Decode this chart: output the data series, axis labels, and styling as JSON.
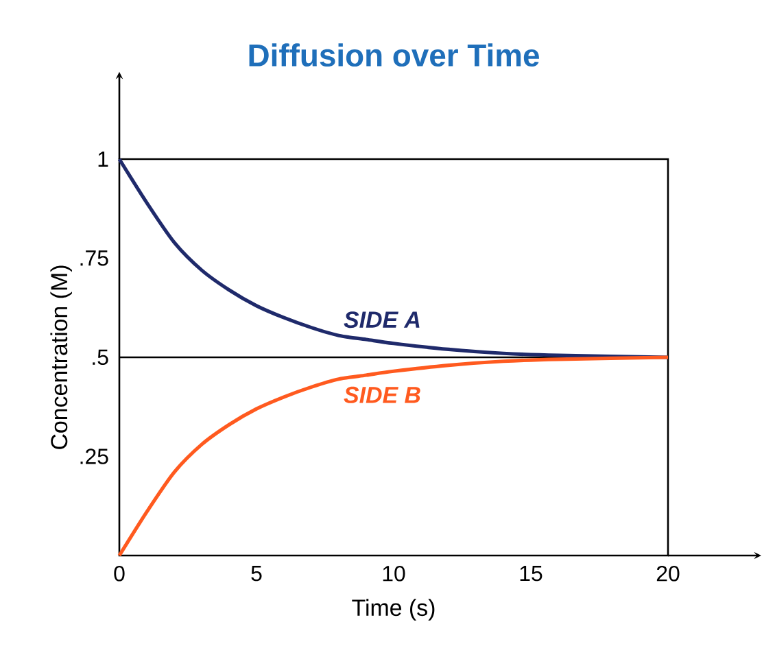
{
  "chart_data": {
    "type": "line",
    "title": "Diffusion over Time",
    "xlabel": "Time (s)",
    "ylabel": "Concentration (M)",
    "x": [
      0,
      1,
      2,
      3,
      4,
      5,
      6,
      7,
      8,
      9,
      10,
      12,
      14,
      16,
      20
    ],
    "series": [
      {
        "name": "SIDE A",
        "color": "#1f2a6b",
        "values": [
          1,
          0.89,
          0.79,
          0.72,
          0.67,
          0.63,
          0.6,
          0.575,
          0.555,
          0.545,
          0.535,
          0.52,
          0.51,
          0.505,
          0.5
        ]
      },
      {
        "name": "SIDE B",
        "color": "#ff5a1f",
        "values": [
          0,
          0.11,
          0.21,
          0.28,
          0.33,
          0.37,
          0.4,
          0.425,
          0.445,
          0.455,
          0.465,
          0.48,
          0.49,
          0.495,
          0.5
        ]
      }
    ],
    "xlim": [
      0,
      20
    ],
    "ylim": [
      0,
      1
    ],
    "xticks": [
      0,
      5,
      10,
      15,
      20
    ],
    "yticks": [
      {
        "value": 0.25,
        "label": ".25"
      },
      {
        "value": 0.5,
        "label": ".5"
      },
      {
        "value": 0.75,
        "label": ".75"
      },
      1
    ],
    "ref_lines": [
      {
        "axis": "y",
        "value": 0.5
      }
    ],
    "grid": false,
    "marker": "none",
    "line_style": "solid"
  }
}
